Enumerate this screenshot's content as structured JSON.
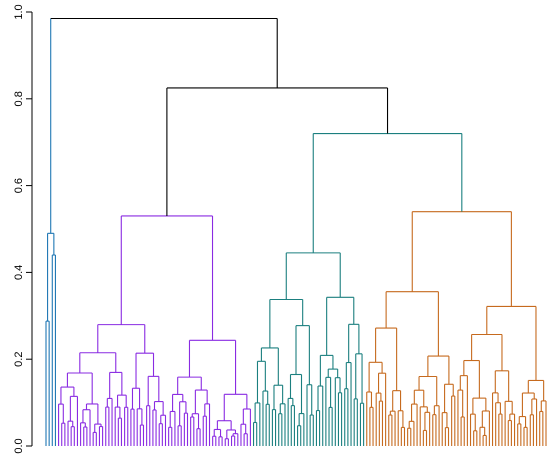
{
  "chart_data": {
    "type": "dendrogram",
    "title": "",
    "xlabel": "",
    "ylabel": "",
    "ylim": [
      0,
      1.0
    ],
    "yticks": [
      0.0,
      0.2,
      0.4,
      0.6,
      0.8,
      1.0
    ],
    "ytick_labels": [
      "0.0",
      "0.2",
      "0.4",
      "0.6",
      "0.8",
      "1.0"
    ],
    "grid": false,
    "legend": "none",
    "cluster_colors": {
      "root": "#000000",
      "blue": "#1f77b4",
      "purple": "#8a2be2",
      "teal": "#1b7f7f",
      "orange": "#c66a1e"
    },
    "merges": [
      {
        "id": "root",
        "height": 0.985,
        "children": [
          "blue",
          "rest"
        ],
        "color": "#000000"
      },
      {
        "id": "rest",
        "height": 0.825,
        "children": [
          "purple",
          "teal_orange"
        ],
        "color": "#000000"
      },
      {
        "id": "teal_orange",
        "height": 0.72,
        "children": [
          "teal",
          "orange"
        ],
        "color": "#1b7f7f"
      },
      {
        "id": "purple",
        "height": 0.53,
        "children": [
          "purple_left",
          "purple_right"
        ],
        "color": "#8a2be2"
      },
      {
        "id": "teal",
        "height": 0.445,
        "children": [
          "teal_left",
          "teal_right"
        ],
        "color": "#1b7f7f"
      },
      {
        "id": "orange",
        "height": 0.54,
        "children": [
          "orange_left",
          "orange_right"
        ],
        "color": "#c66a1e"
      },
      {
        "id": "blue",
        "height": 0.49,
        "children": [],
        "color": "#1f77b4"
      }
    ],
    "clusters": [
      {
        "name": "blue",
        "color": "#1f77b4",
        "leaf_count": 4,
        "top_height": 0.49
      },
      {
        "name": "purple",
        "color": "#8a2be2",
        "leaf_count": 62,
        "top_height": 0.53
      },
      {
        "name": "teal",
        "color": "#1b7f7f",
        "leaf_count": 36,
        "top_height": 0.445
      },
      {
        "name": "orange",
        "color": "#c66a1e",
        "leaf_count": 58,
        "top_height": 0.54
      }
    ]
  }
}
